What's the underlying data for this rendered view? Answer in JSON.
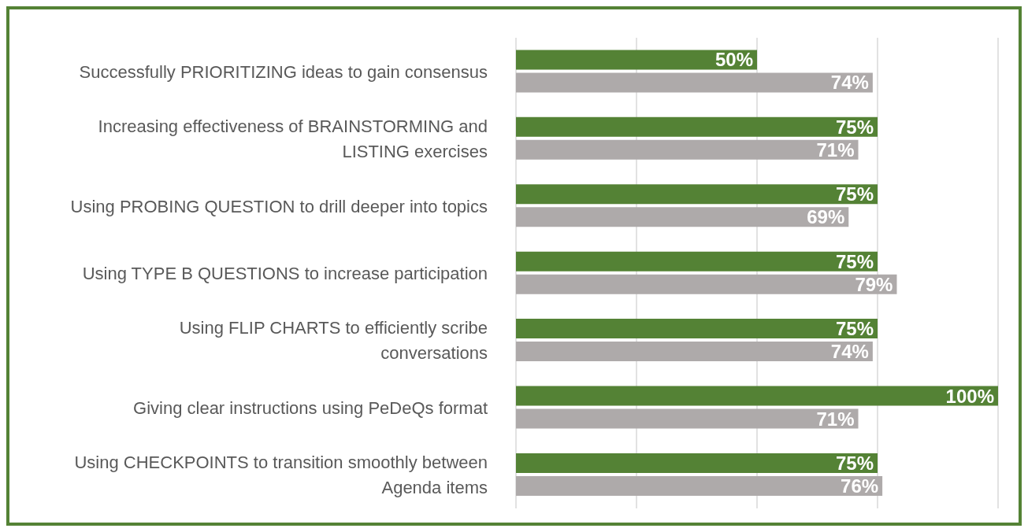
{
  "chart_data": {
    "type": "bar",
    "orientation": "horizontal",
    "categories": [
      "Successfully PRIORITIZING ideas to gain consensus",
      "Increasing effectiveness of BRAINSTORMING and LISTING exercises",
      "Using PROBING QUESTION to drill deeper into topics",
      "Using TYPE B QUESTIONS to increase participation",
      "Using FLIP CHARTS to efficiently scribe conversations",
      "Giving clear instructions using PeDeQs format",
      "Using CHECKPOINTS to transition smoothly between Agenda items"
    ],
    "series": [
      {
        "color": "#548235",
        "values": [
          50,
          75,
          75,
          75,
          75,
          100,
          75
        ],
        "value_labels": [
          "50%",
          "75%",
          "75%",
          "75%",
          "75%",
          "100%",
          "75%"
        ]
      },
      {
        "color": "#aeaaaa",
        "values": [
          74,
          71,
          69,
          79,
          74,
          71,
          76
        ],
        "value_labels": [
          "74%",
          "71%",
          "69%",
          "79%",
          "74%",
          "71%",
          "76%"
        ]
      }
    ],
    "xlim": [
      0,
      100
    ],
    "grid": "x",
    "legend": false,
    "tick_labels": "y"
  }
}
